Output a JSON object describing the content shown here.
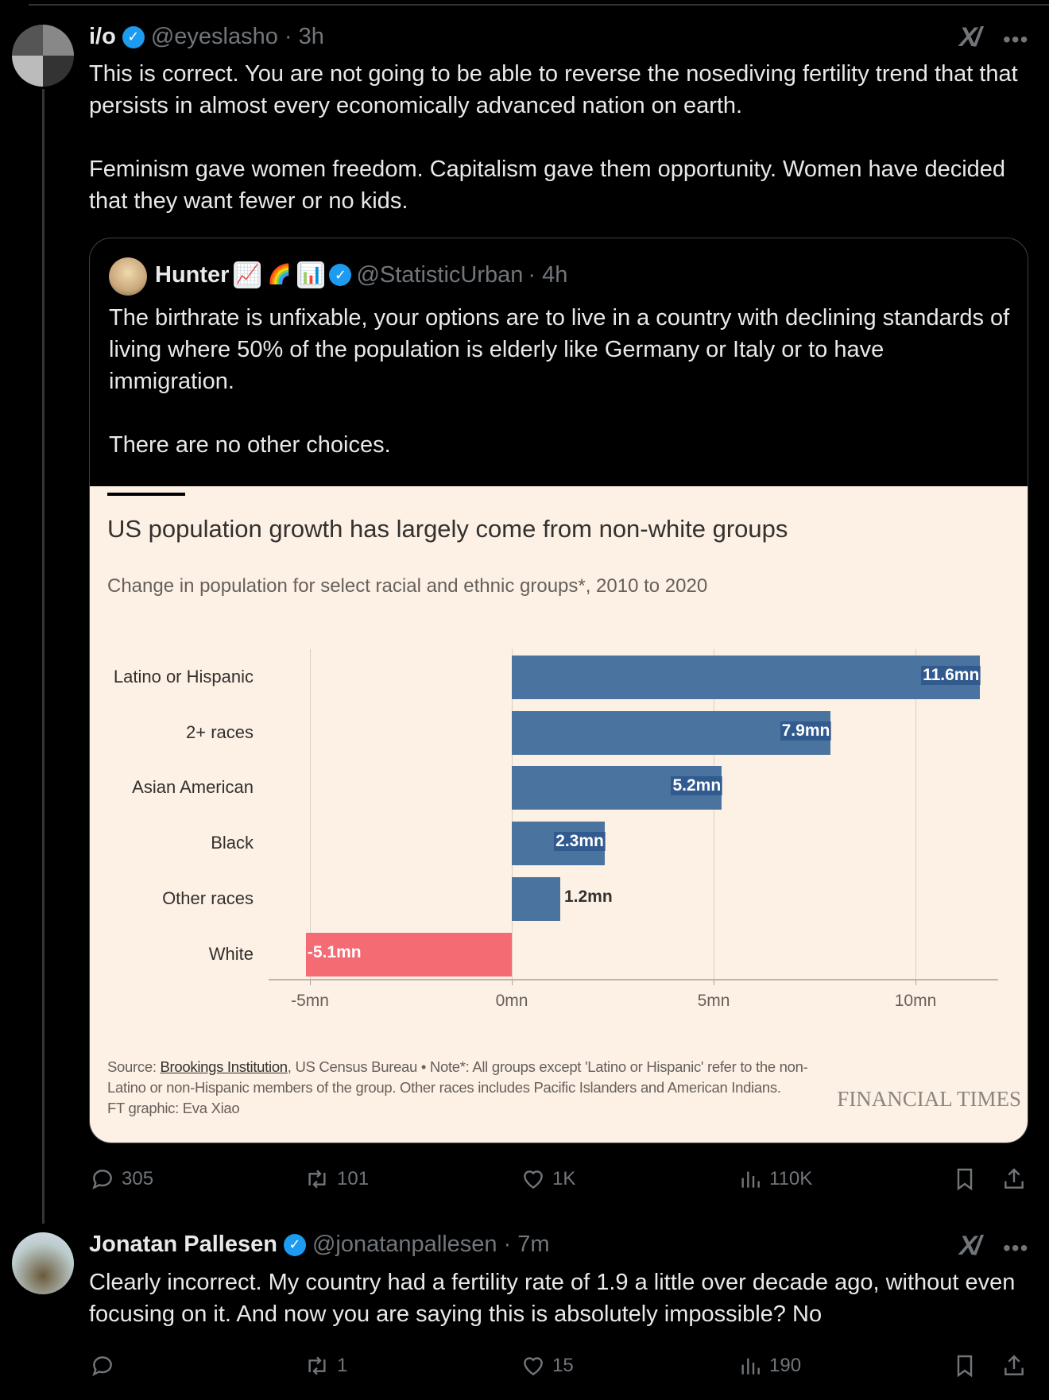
{
  "tweet1": {
    "name": "i/o",
    "handle": "@eyeslasho",
    "time": "· 3h",
    "body": "This is correct. You are not going to be able to reverse the nosediving fertility trend that that persists in almost every economically advanced nation on earth.\n\nFeminism gave women freedom. Capitalism gave them opportunity. Women have decided that they want fewer or no kids.",
    "actions": {
      "replies": "305",
      "retweets": "101",
      "likes": "1K",
      "views": "110K"
    }
  },
  "quote": {
    "name": "Hunter",
    "emojis": [
      "📈",
      "🌈",
      "📊"
    ],
    "handle": "@StatisticUrban",
    "time": "· 4h",
    "body": "The birthrate is unfixable, your options are to live in a country with declining standards of living where 50% of the population is elderly like Germany or Italy or to have immigration.\n\nThere are no other choices."
  },
  "chart_data": {
    "type": "bar",
    "orientation": "horizontal",
    "title": "US population growth has largely come from non-white groups",
    "subtitle": "Change in population for select racial and ethnic groups*, 2010 to 2020",
    "categories": [
      "Latino or Hispanic",
      "2+ races",
      "Asian American",
      "Black",
      "Other races",
      "White"
    ],
    "values": [
      11.6,
      7.9,
      5.2,
      2.3,
      1.2,
      -5.1
    ],
    "value_labels": [
      "11.6mn",
      "7.9mn",
      "5.2mn",
      "2.3mn",
      "1.2mn",
      "-5.1mn"
    ],
    "xticks": [
      -5,
      0,
      5,
      10
    ],
    "xtick_labels": [
      "-5mn",
      "0mn",
      "5mn",
      "10mn"
    ],
    "xlim": [
      -5.6,
      12.4
    ],
    "unit": "mn",
    "colors": {
      "positive": "#4b73a0",
      "negative": "#f46b74"
    },
    "source_prefix": "Source: ",
    "source_link": "Brookings Institution",
    "source_rest": ", US Census Bureau • Note*: All groups except 'Latino or Hispanic' refer to the non-Latino or non-Hispanic members of the group. Other races includes Pacific Islanders and American Indians.",
    "credit": "FT graphic: Eva Xiao",
    "brand": "FINANCIAL TIMES"
  },
  "tweet2": {
    "name": "Jonatan Pallesen",
    "handle": "@jonatanpallesen",
    "time": "· 7m",
    "body": "Clearly incorrect. My country had a fertility rate of 1.9 a little over decade ago, without even focusing on it. And now you are saying this is absolutely impossible? No",
    "actions": {
      "replies": "",
      "retweets": "1",
      "likes": "15",
      "views": "190"
    }
  },
  "icons": {
    "verified": "✓",
    "grok": "X/",
    "more": "•••"
  }
}
